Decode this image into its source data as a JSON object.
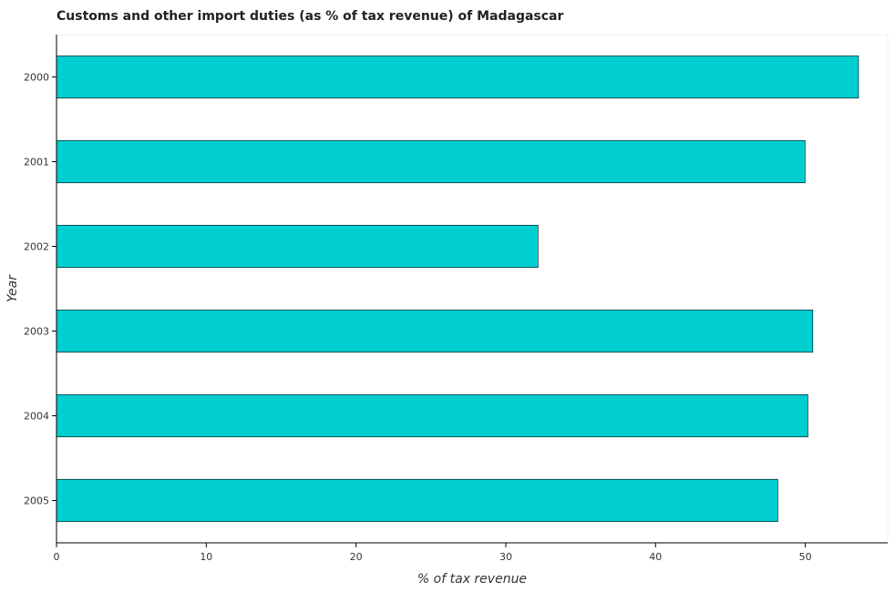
{
  "chart_data": {
    "type": "bar",
    "orientation": "horizontal",
    "title": "Customs and other import duties (as % of tax revenue) of Madagascar",
    "xlabel": "% of tax revenue",
    "ylabel": "Year",
    "categories": [
      "2000",
      "2001",
      "2002",
      "2003",
      "2004",
      "2005"
    ],
    "values": [
      53.55,
      49.98,
      32.15,
      50.5,
      50.17,
      48.16
    ],
    "xlim": [
      0,
      55.5
    ],
    "xticks": [
      0,
      10,
      20,
      30,
      40,
      50
    ],
    "grid": false,
    "legend": "none",
    "bar_color": "#00CED1",
    "bar_edge_color": "#000000"
  }
}
